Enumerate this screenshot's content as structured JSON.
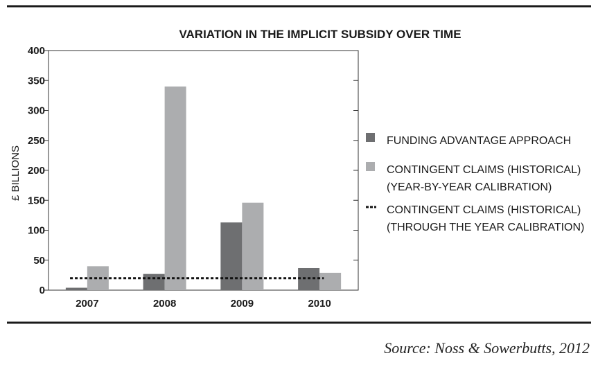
{
  "chart_data": {
    "type": "bar",
    "title": "VARIATION IN THE IMPLICIT SUBSIDY OVER TIME",
    "ylabel": "£ BILLIONS",
    "xlabel": "",
    "ylim": [
      0,
      400
    ],
    "yticks": [
      "0",
      "50",
      "100",
      "150",
      "200",
      "250",
      "300",
      "350",
      "400"
    ],
    "yticks_values": [
      0,
      50,
      100,
      150,
      200,
      250,
      300,
      350,
      400
    ],
    "categories": [
      "2007",
      "2008",
      "2009",
      "2010"
    ],
    "series": [
      {
        "name": "FUNDING ADVANTAGE APPROACH",
        "kind": "bar",
        "color": "#6e6f71",
        "values": [
          4,
          27,
          113,
          37
        ]
      },
      {
        "name": "CONTINGENT CLAIMS (HISTORICAL) (YEAR-BY-YEAR CALIBRATION)",
        "kind": "bar",
        "color": "#acadaf",
        "values": [
          40,
          340,
          146,
          29
        ]
      },
      {
        "name": "CONTINGENT CLAIMS (HISTORICAL) (THROUGH THE YEAR CALIBRATION)",
        "kind": "dashed-line",
        "color": "#111111",
        "value": 20
      }
    ],
    "legend": {
      "placement": "right",
      "entries": [
        {
          "lines": [
            "FUNDING ADVANTAGE APPROACH"
          ]
        },
        {
          "lines": [
            "CONTINGENT CLAIMS (HISTORICAL)",
            "(YEAR-BY-YEAR CALIBRATION)"
          ]
        },
        {
          "lines": [
            "CONTINGENT CLAIMS (HISTORICAL)",
            "(THROUGH THE YEAR CALIBRATION)"
          ]
        }
      ]
    }
  },
  "source": "Source: Noss & Sowerbutts, 2012"
}
